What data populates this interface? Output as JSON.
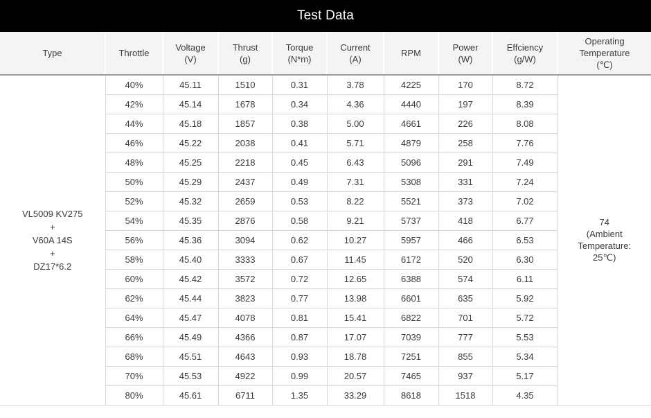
{
  "title": "Test Data",
  "colors": {
    "title_bar_bg": "#000000",
    "title_text": "#ffffff",
    "header_bg": "#f4f4f4",
    "header_divider": "#9b9b9b",
    "cell_border": "#d8d8d8",
    "text": "#3a3a3a"
  },
  "table": {
    "headers": [
      "Type",
      "Throttle",
      "Voltage\n(V)",
      "Thrust\n(g)",
      "Torque\n(N*m)",
      "Current\n(A)",
      "RPM",
      "Power\n(W)",
      "Effciency\n(g/W)",
      "Operating\nTemperature\n(℃)"
    ],
    "column_keys": [
      "throttle",
      "voltage",
      "thrust",
      "torque",
      "current",
      "rpm",
      "power",
      "efficiency"
    ],
    "type": "VL5009 KV275\n+\nV60A 14S\n+\nDZ17*6.2",
    "operating_temperature": "74\n(Ambient\nTemperature:\n25℃)",
    "rows": [
      [
        "40%",
        "45.11",
        "1510",
        "0.31",
        "3.78",
        "4225",
        "170",
        "8.72"
      ],
      [
        "42%",
        "45.14",
        "1678",
        "0.34",
        "4.36",
        "4440",
        "197",
        "8.39"
      ],
      [
        "44%",
        "45.18",
        "1857",
        "0.38",
        "5.00",
        "4661",
        "226",
        "8.08"
      ],
      [
        "46%",
        "45.22",
        "2038",
        "0.41",
        "5.71",
        "4879",
        "258",
        "7.76"
      ],
      [
        "48%",
        "45.25",
        "2218",
        "0.45",
        "6.43",
        "5096",
        "291",
        "7.49"
      ],
      [
        "50%",
        "45.29",
        "2437",
        "0.49",
        "7.31",
        "5308",
        "331",
        "7.24"
      ],
      [
        "52%",
        "45.32",
        "2659",
        "0.53",
        "8.22",
        "5521",
        "373",
        "7.02"
      ],
      [
        "54%",
        "45.35",
        "2876",
        "0.58",
        "9.21",
        "5737",
        "418",
        "6.77"
      ],
      [
        "56%",
        "45.36",
        "3094",
        "0.62",
        "10.27",
        "5957",
        "466",
        "6.53"
      ],
      [
        "58%",
        "45.40",
        "3333",
        "0.67",
        "11.45",
        "6172",
        "520",
        "6.30"
      ],
      [
        "60%",
        "45.42",
        "3572",
        "0.72",
        "12.65",
        "6388",
        "574",
        "6.11"
      ],
      [
        "62%",
        "45.44",
        "3823",
        "0.77",
        "13.98",
        "6601",
        "635",
        "5.92"
      ],
      [
        "64%",
        "45.47",
        "4078",
        "0.81",
        "15.41",
        "6822",
        "701",
        "5.72"
      ],
      [
        "66%",
        "45.49",
        "4366",
        "0.87",
        "17.07",
        "7039",
        "777",
        "5.53"
      ],
      [
        "68%",
        "45.51",
        "4643",
        "0.93",
        "18.78",
        "7251",
        "855",
        "5.34"
      ],
      [
        "70%",
        "45.53",
        "4922",
        "0.99",
        "20.57",
        "7465",
        "937",
        "5.17"
      ],
      [
        "80%",
        "45.61",
        "6711",
        "1.35",
        "33.29",
        "8618",
        "1518",
        "4.35"
      ]
    ]
  },
  "chart_data": {
    "type": "table",
    "title": "Test Data",
    "type_label": "VL5009 KV275 + V60A 14S + DZ17*6.2",
    "operating_temperature": "74 (Ambient Temperature: 25℃)",
    "columns": [
      "Throttle (%)",
      "Voltage (V)",
      "Thrust (g)",
      "Torque (N*m)",
      "Current (A)",
      "RPM",
      "Power (W)",
      "Effciency (g/W)"
    ],
    "rows": [
      [
        40,
        45.11,
        1510,
        0.31,
        3.78,
        4225,
        170,
        8.72
      ],
      [
        42,
        45.14,
        1678,
        0.34,
        4.36,
        4440,
        197,
        8.39
      ],
      [
        44,
        45.18,
        1857,
        0.38,
        5.0,
        4661,
        226,
        8.08
      ],
      [
        46,
        45.22,
        2038,
        0.41,
        5.71,
        4879,
        258,
        7.76
      ],
      [
        48,
        45.25,
        2218,
        0.45,
        6.43,
        5096,
        291,
        7.49
      ],
      [
        50,
        45.29,
        2437,
        0.49,
        7.31,
        5308,
        331,
        7.24
      ],
      [
        52,
        45.32,
        2659,
        0.53,
        8.22,
        5521,
        373,
        7.02
      ],
      [
        54,
        45.35,
        2876,
        0.58,
        9.21,
        5737,
        418,
        6.77
      ],
      [
        56,
        45.36,
        3094,
        0.62,
        10.27,
        5957,
        466,
        6.53
      ],
      [
        58,
        45.4,
        3333,
        0.67,
        11.45,
        6172,
        520,
        6.3
      ],
      [
        60,
        45.42,
        3572,
        0.72,
        12.65,
        6388,
        574,
        6.11
      ],
      [
        62,
        45.44,
        3823,
        0.77,
        13.98,
        6601,
        635,
        5.92
      ],
      [
        64,
        45.47,
        4078,
        0.81,
        15.41,
        6822,
        701,
        5.72
      ],
      [
        66,
        45.49,
        4366,
        0.87,
        17.07,
        7039,
        777,
        5.53
      ],
      [
        68,
        45.51,
        4643,
        0.93,
        18.78,
        7251,
        855,
        5.34
      ],
      [
        70,
        45.53,
        4922,
        0.99,
        20.57,
        7465,
        937,
        5.17
      ],
      [
        80,
        45.61,
        6711,
        1.35,
        33.29,
        8618,
        1518,
        4.35
      ]
    ]
  }
}
